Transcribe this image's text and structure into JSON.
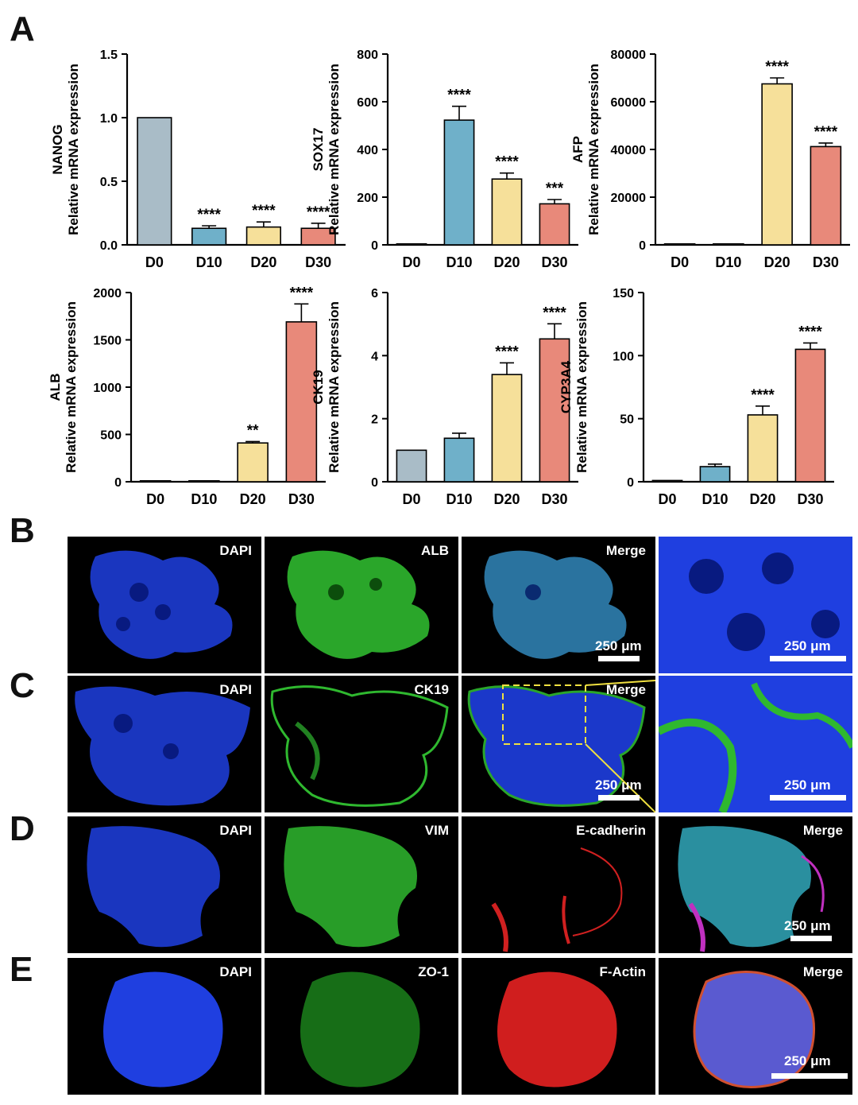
{
  "panel_labels": {
    "A": "A",
    "B": "B",
    "C": "C",
    "D": "D",
    "E": "E"
  },
  "colors": {
    "D0": "#a9bcc7",
    "D10": "#6fb0c9",
    "D20": "#f6e09a",
    "D30": "#e8897a",
    "axis": "#000000"
  },
  "chart_data": [
    {
      "type": "bar",
      "gene": "NANOG",
      "ylabel": "Relative mRNA expression",
      "categories": [
        "D0",
        "D10",
        "D20",
        "D30"
      ],
      "values": [
        1.0,
        0.13,
        0.14,
        0.13
      ],
      "errors": [
        0,
        0.02,
        0.04,
        0.04
      ],
      "significance": [
        "",
        "****",
        "****",
        "****"
      ],
      "ylim": [
        0,
        1.5
      ],
      "yticks": [
        0,
        0.5,
        1.0,
        1.5
      ],
      "ytick_labels": [
        "0.0",
        "0.5",
        "1.0",
        "1.5"
      ]
    },
    {
      "type": "bar",
      "gene": "SOX17",
      "ylabel": "Relative mRNA expression",
      "categories": [
        "D0",
        "D10",
        "D20",
        "D30"
      ],
      "values": [
        1,
        523,
        276,
        172
      ],
      "errors": [
        0,
        58,
        25,
        18
      ],
      "significance": [
        "",
        "****",
        "****",
        "***"
      ],
      "ylim": [
        0,
        800
      ],
      "yticks": [
        0,
        200,
        400,
        600,
        800
      ],
      "ytick_labels": [
        "0",
        "200",
        "400",
        "600",
        "800"
      ]
    },
    {
      "type": "bar",
      "gene": "AFP",
      "ylabel": "Relative mRNA expression",
      "categories": [
        "D0",
        "D10",
        "D20",
        "D30"
      ],
      "values": [
        1,
        10,
        67500,
        41200
      ],
      "errors": [
        0,
        0,
        2500,
        1500
      ],
      "significance": [
        "",
        "",
        "****",
        "****"
      ],
      "ylim": [
        0,
        80000
      ],
      "yticks": [
        0,
        20000,
        40000,
        60000,
        80000
      ],
      "ytick_labels": [
        "0",
        "20000",
        "40000",
        "60000",
        "80000"
      ]
    },
    {
      "type": "bar",
      "gene": "ALB",
      "ylabel": "Relative mRNA expression",
      "categories": [
        "D0",
        "D10",
        "D20",
        "D30"
      ],
      "values": [
        1,
        1,
        410,
        1690
      ],
      "errors": [
        0,
        0,
        15,
        190
      ],
      "significance": [
        "",
        "",
        "**",
        "****"
      ],
      "ylim": [
        0,
        2000
      ],
      "yticks": [
        0,
        500,
        1000,
        1500,
        2000
      ],
      "ytick_labels": [
        "0",
        "500",
        "1000",
        "1500",
        "2000"
      ]
    },
    {
      "type": "bar",
      "gene": "CK19",
      "ylabel": "Relative mRNA expression",
      "categories": [
        "D0",
        "D10",
        "D20",
        "D30"
      ],
      "values": [
        1.0,
        1.38,
        3.4,
        4.53
      ],
      "errors": [
        0,
        0.16,
        0.37,
        0.48
      ],
      "significance": [
        "",
        "",
        "****",
        "****"
      ],
      "ylim": [
        0,
        6
      ],
      "yticks": [
        0,
        2,
        4,
        6
      ],
      "ytick_labels": [
        "0",
        "2",
        "4",
        "6"
      ]
    },
    {
      "type": "bar",
      "gene": "CYP3A4",
      "ylabel": "Relative mRNA expression",
      "categories": [
        "D0",
        "D10",
        "D20",
        "D30"
      ],
      "values": [
        1,
        12,
        53,
        105
      ],
      "errors": [
        0,
        2,
        7,
        5
      ],
      "significance": [
        "",
        "",
        "****",
        "****"
      ],
      "ylim": [
        0,
        150
      ],
      "yticks": [
        0,
        50,
        100,
        150
      ],
      "ytick_labels": [
        "0",
        "50",
        "100",
        "150"
      ]
    }
  ],
  "microscopy": {
    "B": {
      "labels": [
        "DAPI",
        "ALB",
        "Merge",
        ""
      ],
      "scale_text": "250 μm"
    },
    "C": {
      "labels": [
        "DAPI",
        "CK19",
        "Merge",
        ""
      ],
      "scale_text": "250 μm"
    },
    "D": {
      "labels": [
        "DAPI",
        "VIM",
        "E-cadherin",
        "Merge"
      ],
      "scale_text": "250 μm"
    },
    "E": {
      "labels": [
        "DAPI",
        "ZO-1",
        "F-Actin",
        "Merge"
      ],
      "scale_text": "250 μm"
    }
  }
}
